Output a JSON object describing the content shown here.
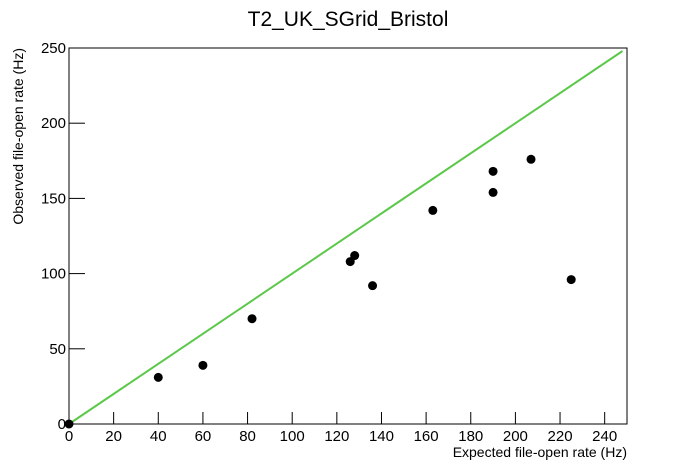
{
  "chart_data": {
    "type": "scatter",
    "title": "T2_UK_SGrid_Bristol",
    "x_label": "Expected file-open rate (Hz)",
    "y_label": "Observed file-open rate (Hz)",
    "x": [
      0,
      40,
      60,
      82,
      126,
      128,
      136,
      163,
      190,
      190,
      207,
      225
    ],
    "values": [
      0,
      31,
      39,
      70,
      108,
      112,
      92,
      142,
      154,
      168,
      176,
      96
    ],
    "color": "#000000",
    "line": {
      "x": [
        0,
        248
      ],
      "values": [
        0,
        248
      ],
      "color": "#5bc84a"
    },
    "xlim": [
      0,
      250
    ],
    "ylim": [
      0,
      250
    ],
    "xticks": [
      0,
      20,
      40,
      60,
      80,
      100,
      120,
      140,
      160,
      180,
      200,
      220,
      240
    ],
    "yticks": [
      0,
      50,
      100,
      150,
      200,
      250
    ]
  }
}
